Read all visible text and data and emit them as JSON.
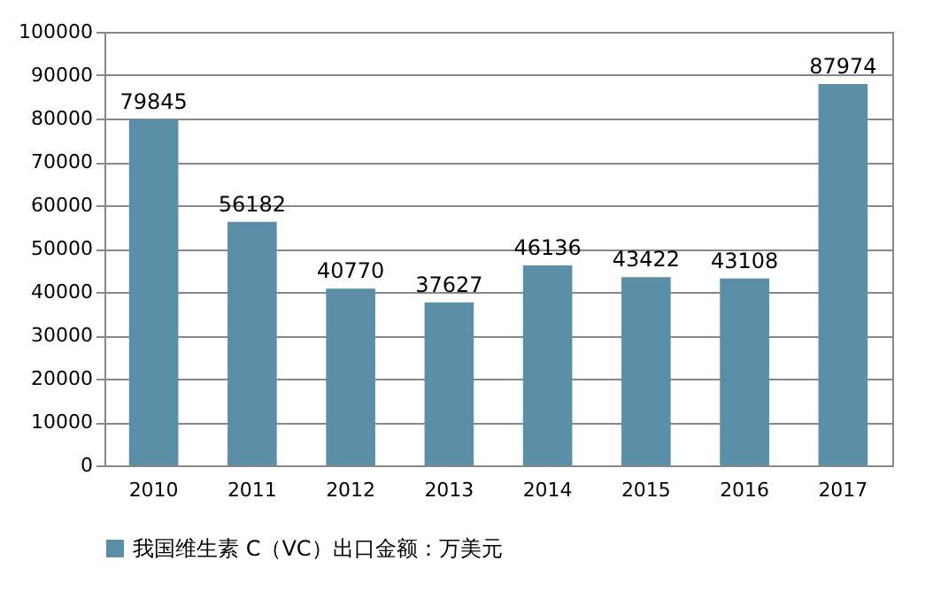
{
  "chart_data": {
    "type": "bar",
    "categories": [
      "2010",
      "2011",
      "2012",
      "2013",
      "2014",
      "2015",
      "2016",
      "2017"
    ],
    "series": [
      {
        "name": "我国维生素 C（VC）出口金额：万美元",
        "color": "#5b8fa8",
        "values": [
          79845,
          56182,
          40770,
          37627,
          46136,
          43422,
          43108,
          87974
        ]
      }
    ],
    "ylim": [
      0,
      100000
    ],
    "yticks": [
      0,
      10000,
      20000,
      30000,
      40000,
      50000,
      60000,
      70000,
      80000,
      90000,
      100000
    ],
    "grid": "y",
    "legend": "bottom",
    "data_labels": true
  }
}
